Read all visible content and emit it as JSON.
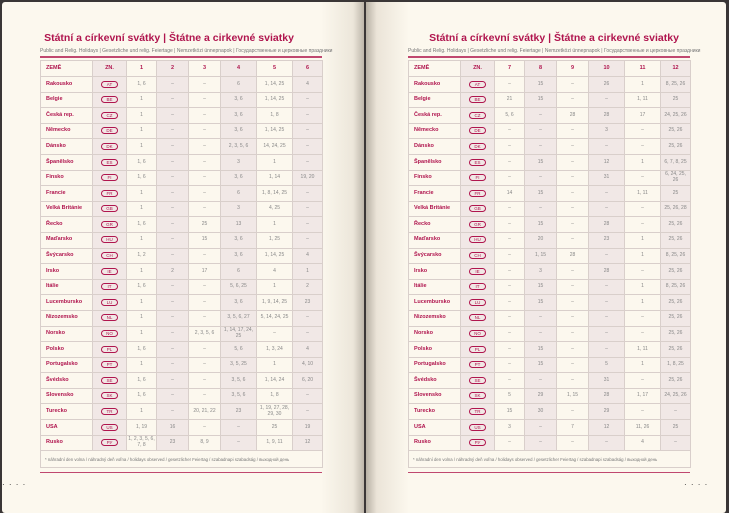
{
  "title": "Státní a církevní svátky | Štátne a cirkevné sviatky",
  "subtitle": "Public and Relig. Holidays | Gesetzliche und relig. Feiertage | Nemzetközi ünnepnapok | Государственные и церковные праздники",
  "headers": {
    "country": "ZEMĚ",
    "code": "ZN."
  },
  "left_months": [
    "1",
    "2",
    "3",
    "4",
    "5",
    "6"
  ],
  "right_months": [
    "7",
    "8",
    "9",
    "10",
    "11",
    "12"
  ],
  "footnote": "* náhradní den volna / náhradný deň voľna / holidays observed / gesetzlicher Feiertag / szabadnapi szabadság / выходной день",
  "accent_color": "#b0154e",
  "rows": [
    {
      "country": "Rakousko",
      "code": "AT",
      "left": [
        "1, 6",
        "–",
        "–",
        "6",
        "1, 14, 25",
        "4"
      ],
      "right": [
        "–",
        "15",
        "–",
        "26",
        "1",
        "8, 25, 26"
      ]
    },
    {
      "country": "Belgie",
      "code": "BE",
      "left": [
        "1",
        "–",
        "–",
        "3, 6",
        "1, 14, 25",
        "–"
      ],
      "right": [
        "21",
        "15",
        "–",
        "–",
        "1, 11",
        "25"
      ]
    },
    {
      "country": "Česká rep.",
      "code": "CZ",
      "left": [
        "1",
        "–",
        "–",
        "3, 6",
        "1, 8",
        "–"
      ],
      "right": [
        "5, 6",
        "–",
        "28",
        "28",
        "17",
        "24, 25, 26"
      ]
    },
    {
      "country": "Německo",
      "code": "DE",
      "left": [
        "1",
        "–",
        "–",
        "3, 6",
        "1, 14, 25",
        "–"
      ],
      "right": [
        "–",
        "–",
        "–",
        "3",
        "–",
        "25, 26"
      ]
    },
    {
      "country": "Dánsko",
      "code": "DK",
      "left": [
        "1",
        "–",
        "–",
        "2, 3, 5, 6",
        "14, 24, 25",
        "–"
      ],
      "right": [
        "–",
        "–",
        "–",
        "–",
        "–",
        "25, 26"
      ]
    },
    {
      "country": "Španělsko",
      "code": "ES",
      "left": [
        "1, 6",
        "–",
        "–",
        "3",
        "1",
        "–"
      ],
      "right": [
        "–",
        "15",
        "–",
        "12",
        "1",
        "6, 7, 8, 25"
      ]
    },
    {
      "country": "Finsko",
      "code": "FI",
      "left": [
        "1, 6",
        "–",
        "–",
        "3, 6",
        "1, 14",
        "19, 20"
      ],
      "right": [
        "–",
        "–",
        "–",
        "31",
        "–",
        "6, 24, 25, 26"
      ]
    },
    {
      "country": "Francie",
      "code": "FR",
      "left": [
        "1",
        "–",
        "–",
        "6",
        "1, 8, 14, 25",
        "–"
      ],
      "right": [
        "14",
        "15",
        "–",
        "–",
        "1, 11",
        "25"
      ]
    },
    {
      "country": "Velká Británie",
      "code": "GB",
      "left": [
        "1",
        "–",
        "–",
        "3",
        "4, 25",
        "–"
      ],
      "right": [
        "–",
        "–",
        "–",
        "–",
        "–",
        "25, 26, 28"
      ]
    },
    {
      "country": "Řecko",
      "code": "GR",
      "left": [
        "1, 6",
        "–",
        "25",
        "13",
        "1",
        "–"
      ],
      "right": [
        "–",
        "15",
        "–",
        "28",
        "–",
        "25, 26"
      ]
    },
    {
      "country": "Maďarsko",
      "code": "HU",
      "left": [
        "1",
        "–",
        "15",
        "3, 6",
        "1, 25",
        "–"
      ],
      "right": [
        "–",
        "20",
        "–",
        "23",
        "1",
        "25, 26"
      ]
    },
    {
      "country": "Švýcarsko",
      "code": "CH",
      "left": [
        "1, 2",
        "–",
        "–",
        "3, 6",
        "1, 14, 25",
        "4"
      ],
      "right": [
        "–",
        "1, 15",
        "28",
        "–",
        "1",
        "8, 25, 26"
      ]
    },
    {
      "country": "Irsko",
      "code": "IE",
      "left": [
        "1",
        "2",
        "17",
        "6",
        "4",
        "1"
      ],
      "right": [
        "–",
        "3",
        "–",
        "28",
        "–",
        "25, 26"
      ]
    },
    {
      "country": "Itálie",
      "code": "IT",
      "left": [
        "1, 6",
        "–",
        "–",
        "5, 6, 25",
        "1",
        "2"
      ],
      "right": [
        "–",
        "15",
        "–",
        "–",
        "1",
        "8, 25, 26"
      ]
    },
    {
      "country": "Lucembursko",
      "code": "LU",
      "left": [
        "1",
        "–",
        "–",
        "3, 6",
        "1, 9, 14, 25",
        "23"
      ],
      "right": [
        "–",
        "15",
        "–",
        "–",
        "1",
        "25, 26"
      ]
    },
    {
      "country": "Nizozemsko",
      "code": "NL",
      "left": [
        "1",
        "–",
        "–",
        "3, 5, 6, 27",
        "5, 14, 24, 25",
        "–"
      ],
      "right": [
        "–",
        "–",
        "–",
        "–",
        "–",
        "25, 26"
      ]
    },
    {
      "country": "Norsko",
      "code": "NO",
      "left": [
        "1",
        "–",
        "2, 3, 5, 6",
        "1, 14, 17, 24, 25",
        "–",
        "–"
      ],
      "right": [
        "–",
        "–",
        "–",
        "–",
        "–",
        "25, 26"
      ]
    },
    {
      "country": "Polsko",
      "code": "PL",
      "left": [
        "1, 6",
        "–",
        "–",
        "5, 6",
        "1, 3, 24",
        "4"
      ],
      "right": [
        "–",
        "15",
        "–",
        "–",
        "1, 11",
        "25, 26"
      ]
    },
    {
      "country": "Portugalsko",
      "code": "PT",
      "left": [
        "1",
        "–",
        "–",
        "3, 5, 25",
        "1",
        "4, 10"
      ],
      "right": [
        "–",
        "15",
        "–",
        "5",
        "1",
        "1, 8, 25"
      ]
    },
    {
      "country": "Švédsko",
      "code": "SE",
      "left": [
        "1, 6",
        "–",
        "–",
        "3, 5, 6",
        "1, 14, 24",
        "6, 20"
      ],
      "right": [
        "–",
        "–",
        "–",
        "31",
        "–",
        "25, 26"
      ]
    },
    {
      "country": "Slovensko",
      "code": "SK",
      "left": [
        "1, 6",
        "–",
        "–",
        "3, 5, 6",
        "1, 8",
        "–"
      ],
      "right": [
        "5",
        "29",
        "1, 15",
        "28",
        "1, 17",
        "24, 25, 26"
      ]
    },
    {
      "country": "Turecko",
      "code": "TR",
      "left": [
        "1",
        "–",
        "20, 21, 22",
        "23",
        "1, 19, 27, 28, 29, 30",
        "–"
      ],
      "right": [
        "15",
        "30",
        "–",
        "29",
        "–",
        "–"
      ]
    },
    {
      "country": "USA",
      "code": "US",
      "left": [
        "1, 19",
        "16",
        "–",
        "–",
        "25",
        "19"
      ],
      "right": [
        "3",
        "–",
        "7",
        "12",
        "11, 26",
        "25"
      ]
    },
    {
      "country": "Rusko",
      "code": "РУ",
      "left": [
        "1, 2, 3, 5, 6, 7, 8",
        "23",
        "8, 9",
        "–",
        "1, 9, 11",
        "12"
      ],
      "right": [
        "–",
        "–",
        "–",
        "–",
        "4",
        "–"
      ]
    }
  ]
}
